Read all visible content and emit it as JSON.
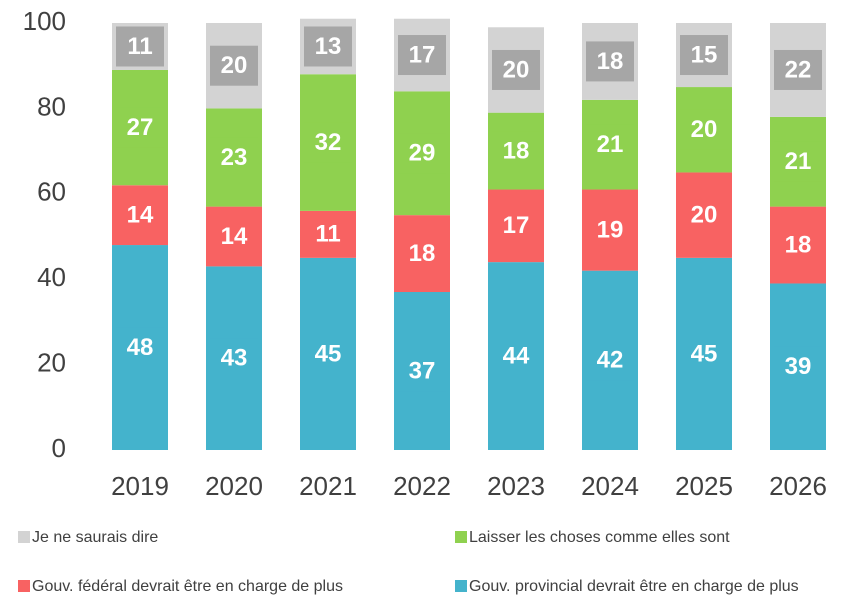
{
  "chart_data": {
    "type": "stacked_bar",
    "categories": [
      "2019",
      "2020",
      "2021",
      "2022",
      "2023",
      "2024",
      "2025",
      "2026"
    ],
    "series": [
      {
        "name": "Gouv. provincial devrait être en charge de plus",
        "color": "#44b3cc",
        "label_color": "#44b3cc",
        "values": [
          48,
          43,
          45,
          37,
          44,
          42,
          45,
          39
        ]
      },
      {
        "name": "Gouv. fédéral devrait être en charge de plus",
        "color": "#f86262",
        "label_color": "#f86262",
        "values": [
          14,
          14,
          11,
          18,
          17,
          19,
          20,
          18
        ]
      },
      {
        "name": "Laisser les choses comme elles sont",
        "color": "#8fd14f",
        "label_color": "#8fd14f",
        "values": [
          27,
          23,
          32,
          29,
          18,
          21,
          20,
          21
        ]
      },
      {
        "name": "Je ne saurais dire",
        "color": "#d3d3d3",
        "label_color": "#a6a6a6",
        "values": [
          11,
          20,
          13,
          17,
          20,
          18,
          15,
          22
        ]
      }
    ],
    "ylim": [
      0,
      100
    ],
    "yticks": [
      0,
      20,
      40,
      60,
      80,
      100
    ],
    "grid": false
  }
}
